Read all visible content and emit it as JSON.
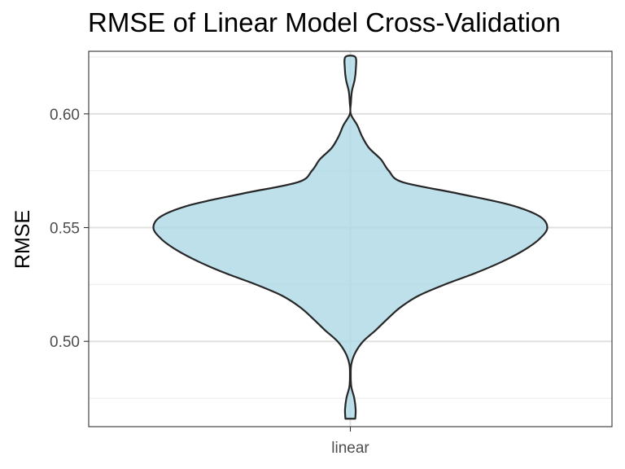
{
  "chart_data": {
    "type": "violin",
    "title": "RMSE of Linear Model Cross-Validation",
    "xlabel": "",
    "ylabel": "RMSE",
    "categories": [
      "linear"
    ],
    "ylim": [
      0.4625,
      0.6275
    ],
    "y_ticks": [
      0.5,
      0.55,
      0.6
    ],
    "y_tick_labels": [
      "0.50",
      "0.55",
      "0.60"
    ],
    "grid": true,
    "theme": "bw",
    "fill_color": "#add8e6",
    "fill_opacity": 0.8,
    "outline_color": "#262626",
    "series": [
      {
        "category": "linear",
        "y_min": 0.466,
        "y_max": 0.625,
        "density_profile": [
          {
            "y": 0.466,
            "density": 0.025
          },
          {
            "y": 0.47,
            "density": 0.027
          },
          {
            "y": 0.475,
            "density": 0.02
          },
          {
            "y": 0.48,
            "density": 0.005
          },
          {
            "y": 0.485,
            "density": 0.002
          },
          {
            "y": 0.49,
            "density": 0.005
          },
          {
            "y": 0.495,
            "density": 0.025
          },
          {
            "y": 0.5,
            "density": 0.065
          },
          {
            "y": 0.505,
            "density": 0.13
          },
          {
            "y": 0.51,
            "density": 0.19
          },
          {
            "y": 0.515,
            "density": 0.255
          },
          {
            "y": 0.52,
            "density": 0.345
          },
          {
            "y": 0.525,
            "density": 0.48
          },
          {
            "y": 0.53,
            "density": 0.635
          },
          {
            "y": 0.535,
            "density": 0.77
          },
          {
            "y": 0.54,
            "density": 0.88
          },
          {
            "y": 0.545,
            "density": 0.96
          },
          {
            "y": 0.55,
            "density": 1.0
          },
          {
            "y": 0.555,
            "density": 0.96
          },
          {
            "y": 0.56,
            "density": 0.81
          },
          {
            "y": 0.565,
            "density": 0.545
          },
          {
            "y": 0.57,
            "density": 0.265
          },
          {
            "y": 0.575,
            "density": 0.195
          },
          {
            "y": 0.58,
            "density": 0.155
          },
          {
            "y": 0.585,
            "density": 0.095
          },
          {
            "y": 0.59,
            "density": 0.06
          },
          {
            "y": 0.595,
            "density": 0.035
          },
          {
            "y": 0.6,
            "density": 0.002
          },
          {
            "y": 0.605,
            "density": 0.003
          },
          {
            "y": 0.61,
            "density": 0.008
          },
          {
            "y": 0.615,
            "density": 0.022
          },
          {
            "y": 0.62,
            "density": 0.028
          },
          {
            "y": 0.625,
            "density": 0.025
          }
        ]
      }
    ]
  }
}
